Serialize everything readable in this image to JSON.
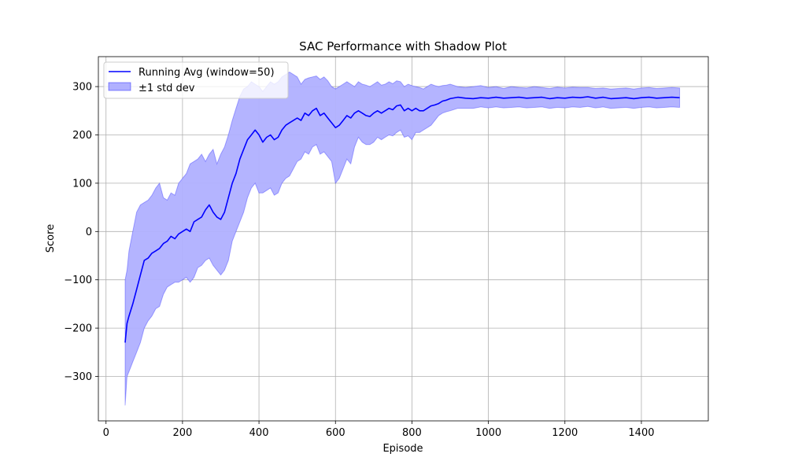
{
  "chart_data": {
    "type": "line",
    "title": "SAC Performance with Shadow Plot",
    "xlabel": "Episode",
    "ylabel": "Score",
    "xlim": [
      -20,
      1575
    ],
    "ylim": [
      -392,
      362
    ],
    "xticks": [
      0,
      200,
      400,
      600,
      800,
      1000,
      1200,
      1400
    ],
    "yticks": [
      -300,
      -200,
      -100,
      0,
      100,
      200,
      300
    ],
    "xtick_labels": [
      "0",
      "200",
      "400",
      "600",
      "800",
      "1000",
      "1200",
      "1400"
    ],
    "ytick_labels": [
      "−300",
      "−200",
      "−100",
      "0",
      "100",
      "200",
      "300"
    ],
    "grid": true,
    "legend_position": "upper-left",
    "series": [
      {
        "name": "Running Avg (window=50)",
        "color": "#0000ff",
        "x": [
          50,
          55,
          60,
          70,
          80,
          90,
          100,
          110,
          120,
          130,
          140,
          150,
          160,
          170,
          180,
          190,
          200,
          210,
          220,
          230,
          240,
          250,
          260,
          270,
          280,
          290,
          300,
          310,
          320,
          330,
          340,
          350,
          360,
          370,
          380,
          390,
          400,
          410,
          420,
          430,
          440,
          450,
          460,
          470,
          480,
          490,
          500,
          510,
          520,
          530,
          540,
          550,
          560,
          570,
          580,
          590,
          600,
          610,
          620,
          630,
          640,
          650,
          660,
          670,
          680,
          690,
          700,
          710,
          720,
          730,
          740,
          750,
          760,
          770,
          780,
          790,
          800,
          810,
          820,
          830,
          840,
          850,
          860,
          870,
          880,
          890,
          900,
          920,
          940,
          960,
          980,
          1000,
          1020,
          1040,
          1060,
          1080,
          1100,
          1120,
          1140,
          1160,
          1180,
          1200,
          1220,
          1240,
          1260,
          1280,
          1300,
          1320,
          1340,
          1360,
          1380,
          1400,
          1420,
          1440,
          1460,
          1480,
          1500
        ],
        "y": [
          -230,
          -190,
          -175,
          -150,
          -120,
          -90,
          -60,
          -55,
          -45,
          -40,
          -35,
          -25,
          -20,
          -10,
          -15,
          -5,
          0,
          5,
          0,
          20,
          25,
          30,
          45,
          55,
          40,
          30,
          25,
          40,
          70,
          100,
          120,
          150,
          170,
          190,
          200,
          210,
          200,
          185,
          195,
          200,
          190,
          195,
          210,
          220,
          225,
          230,
          235,
          230,
          245,
          240,
          250,
          255,
          240,
          245,
          235,
          225,
          215,
          220,
          230,
          240,
          235,
          245,
          250,
          245,
          240,
          238,
          245,
          250,
          245,
          250,
          255,
          252,
          260,
          262,
          250,
          255,
          250,
          255,
          250,
          250,
          255,
          260,
          262,
          265,
          270,
          272,
          275,
          278,
          276,
          275,
          277,
          276,
          278,
          276,
          277,
          278,
          276,
          277,
          278,
          275,
          277,
          276,
          278,
          277,
          279,
          276,
          278,
          275,
          276,
          277,
          275,
          277,
          278,
          276,
          277,
          278,
          277
        ]
      },
      {
        "name": "±1 std dev",
        "color": "#0000ff",
        "fill_color": "#b0b0ff",
        "x": [
          50,
          55,
          60,
          70,
          80,
          90,
          100,
          110,
          120,
          130,
          140,
          150,
          160,
          170,
          180,
          190,
          200,
          210,
          220,
          230,
          240,
          250,
          260,
          270,
          280,
          290,
          300,
          310,
          320,
          330,
          340,
          350,
          360,
          370,
          380,
          390,
          400,
          410,
          420,
          430,
          440,
          450,
          460,
          470,
          480,
          490,
          500,
          510,
          520,
          530,
          540,
          550,
          560,
          570,
          580,
          590,
          600,
          610,
          620,
          630,
          640,
          650,
          660,
          670,
          680,
          690,
          700,
          710,
          720,
          730,
          740,
          750,
          760,
          770,
          780,
          790,
          800,
          810,
          820,
          830,
          840,
          850,
          860,
          870,
          880,
          890,
          900,
          920,
          940,
          960,
          980,
          1000,
          1020,
          1040,
          1060,
          1080,
          1100,
          1120,
          1140,
          1160,
          1180,
          1200,
          1220,
          1240,
          1260,
          1280,
          1300,
          1320,
          1340,
          1360,
          1380,
          1400,
          1420,
          1440,
          1460,
          1480,
          1500
        ],
        "upper": [
          -100,
          -80,
          -40,
          0,
          40,
          55,
          60,
          65,
          75,
          90,
          100,
          70,
          65,
          80,
          75,
          100,
          110,
          120,
          140,
          145,
          150,
          160,
          145,
          160,
          170,
          140,
          160,
          175,
          200,
          230,
          255,
          280,
          295,
          300,
          310,
          305,
          300,
          290,
          300,
          310,
          305,
          310,
          320,
          325,
          330,
          325,
          320,
          305,
          315,
          318,
          320,
          322,
          315,
          320,
          312,
          300,
          295,
          300,
          305,
          310,
          305,
          300,
          310,
          305,
          303,
          300,
          305,
          310,
          303,
          305,
          310,
          306,
          312,
          310,
          300,
          305,
          302,
          300,
          298,
          295,
          300,
          305,
          302,
          300,
          302,
          303,
          305,
          300,
          298,
          300,
          302,
          298,
          300,
          296,
          300,
          298,
          297,
          300,
          298,
          296,
          299,
          297,
          299,
          298,
          298,
          296,
          297,
          295,
          296,
          297,
          295,
          297,
          298,
          296,
          297,
          298,
          297
        ],
        "lower": [
          -360,
          -300,
          -290,
          -270,
          -250,
          -230,
          -200,
          -185,
          -175,
          -160,
          -155,
          -130,
          -115,
          -110,
          -105,
          -105,
          -100,
          -95,
          -105,
          -95,
          -75,
          -70,
          -60,
          -55,
          -70,
          -80,
          -90,
          -80,
          -60,
          -20,
          0,
          20,
          40,
          70,
          90,
          100,
          80,
          80,
          85,
          90,
          75,
          80,
          100,
          110,
          115,
          130,
          145,
          150,
          165,
          160,
          175,
          180,
          160,
          165,
          155,
          145,
          100,
          110,
          130,
          150,
          140,
          175,
          195,
          185,
          180,
          180,
          185,
          195,
          190,
          195,
          200,
          198,
          205,
          210,
          195,
          198,
          190,
          205,
          205,
          210,
          215,
          220,
          230,
          240,
          245,
          248,
          250,
          255,
          255,
          255,
          258,
          256,
          258,
          256,
          257,
          258,
          256,
          257,
          258,
          255,
          257,
          256,
          258,
          257,
          259,
          256,
          258,
          255,
          256,
          257,
          255,
          257,
          258,
          256,
          257,
          258,
          257
        ]
      }
    ]
  }
}
